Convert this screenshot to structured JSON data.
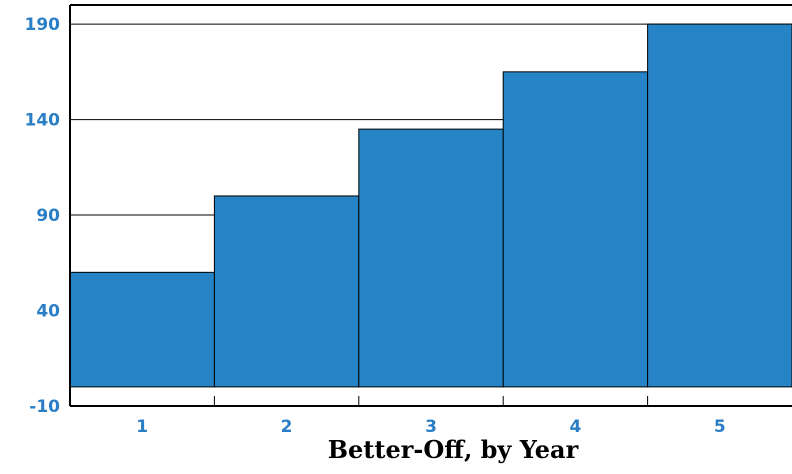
{
  "chart_data": {
    "type": "bar",
    "title": "",
    "xlabel": "Better-Off, by Year",
    "ylabel": "",
    "categories": [
      "1",
      "2",
      "3",
      "4",
      "5"
    ],
    "values": [
      60,
      100,
      135,
      165,
      190
    ],
    "y_ticks": [
      "190",
      "140",
      "90",
      "40",
      "-10"
    ],
    "ylim": [
      -10,
      200
    ],
    "bar_baseline": 0,
    "grid": true,
    "legend": "none",
    "colors": {
      "bar": "#2683c6",
      "tick_label": "#2a7ec6",
      "axis": "#000000",
      "grid": "#000000"
    }
  }
}
